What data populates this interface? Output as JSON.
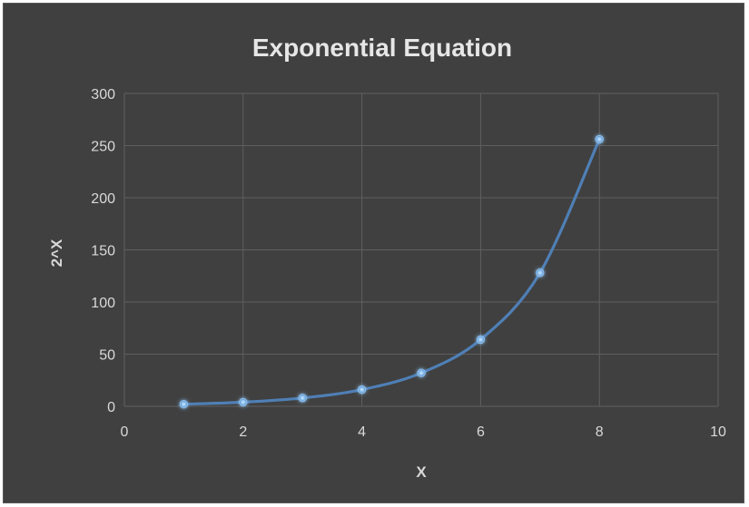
{
  "chart_data": {
    "type": "scatter",
    "title": "Exponential Equation",
    "xlabel": "X",
    "ylabel": "2^X",
    "xlim": [
      0,
      10
    ],
    "ylim": [
      0,
      300
    ],
    "x_ticks": [
      0,
      2,
      4,
      6,
      8,
      10
    ],
    "y_ticks": [
      0,
      50,
      100,
      150,
      200,
      250,
      300
    ],
    "grid": true,
    "legend": "none",
    "smooth_line": true,
    "series": [
      {
        "x": [
          1,
          2,
          3,
          4,
          5,
          6,
          7,
          8
        ],
        "values": [
          2,
          4,
          8,
          16,
          32,
          64,
          128,
          256
        ]
      }
    ],
    "colors": {
      "background": "#404040",
      "grid": "#5f5f5f",
      "line": "#4f7fb5",
      "marker": "#8ec2f0",
      "text": "#d9d9d9"
    }
  }
}
